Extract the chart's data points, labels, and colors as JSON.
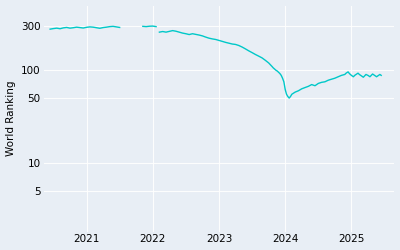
{
  "ylabel": "World Ranking",
  "background_color": "#e8eef5",
  "figure_facecolor": "#e8eef5",
  "line_color": "#00c8c8",
  "line_width": 1.0,
  "yticks": [
    5,
    10,
    50,
    100,
    300
  ],
  "ytick_labels": [
    "5",
    "10",
    "50",
    "100",
    "300"
  ],
  "xtick_years": [
    2021,
    2022,
    2023,
    2024,
    2025
  ],
  "xlim": [
    2020.35,
    2025.65
  ],
  "ylim_log": [
    1.8,
    500
  ],
  "segment1": [
    [
      2020.45,
      278
    ],
    [
      2020.5,
      282
    ],
    [
      2020.55,
      285
    ],
    [
      2020.6,
      281
    ],
    [
      2020.65,
      287
    ],
    [
      2020.7,
      290
    ],
    [
      2020.75,
      285
    ],
    [
      2020.8,
      288
    ],
    [
      2020.85,
      292
    ],
    [
      2020.9,
      289
    ],
    [
      2020.95,
      286
    ],
    [
      2021.0,
      291
    ],
    [
      2021.05,
      294
    ],
    [
      2021.1,
      292
    ],
    [
      2021.15,
      288
    ],
    [
      2021.2,
      284
    ],
    [
      2021.25,
      289
    ],
    [
      2021.3,
      292
    ],
    [
      2021.35,
      296
    ],
    [
      2021.4,
      298
    ],
    [
      2021.45,
      294
    ],
    [
      2021.5,
      290
    ]
  ],
  "segment2": [
    [
      2021.85,
      298
    ],
    [
      2021.9,
      296
    ],
    [
      2021.95,
      299
    ],
    [
      2022.0,
      300
    ],
    [
      2022.05,
      296
    ]
  ],
  "segment3": [
    [
      2022.1,
      258
    ],
    [
      2022.15,
      262
    ],
    [
      2022.2,
      258
    ],
    [
      2022.25,
      263
    ],
    [
      2022.3,
      268
    ],
    [
      2022.35,
      264
    ],
    [
      2022.4,
      258
    ],
    [
      2022.45,
      252
    ],
    [
      2022.5,
      248
    ],
    [
      2022.55,
      243
    ],
    [
      2022.6,
      248
    ],
    [
      2022.65,
      244
    ],
    [
      2022.7,
      240
    ],
    [
      2022.75,
      235
    ],
    [
      2022.8,
      228
    ],
    [
      2022.85,
      222
    ],
    [
      2022.9,
      218
    ],
    [
      2022.95,
      215
    ],
    [
      2023.0,
      210
    ],
    [
      2023.05,
      205
    ],
    [
      2023.1,
      200
    ],
    [
      2023.15,
      196
    ],
    [
      2023.2,
      192
    ],
    [
      2023.25,
      190
    ],
    [
      2023.3,
      185
    ],
    [
      2023.35,
      178
    ],
    [
      2023.4,
      170
    ],
    [
      2023.45,
      162
    ],
    [
      2023.5,
      155
    ],
    [
      2023.55,
      148
    ],
    [
      2023.6,
      142
    ],
    [
      2023.65,
      136
    ],
    [
      2023.7,
      128
    ],
    [
      2023.75,
      120
    ],
    [
      2023.8,
      110
    ],
    [
      2023.82,
      106
    ],
    [
      2023.84,
      103
    ],
    [
      2023.86,
      100
    ],
    [
      2023.88,
      98
    ],
    [
      2023.9,
      95
    ],
    [
      2023.92,
      92
    ],
    [
      2023.94,
      88
    ],
    [
      2023.96,
      82
    ],
    [
      2023.98,
      75
    ],
    [
      2024.0,
      62
    ],
    [
      2024.02,
      55
    ],
    [
      2024.04,
      52
    ],
    [
      2024.06,
      50
    ],
    [
      2024.08,
      52
    ],
    [
      2024.1,
      55
    ],
    [
      2024.15,
      58
    ],
    [
      2024.2,
      60
    ],
    [
      2024.25,
      63
    ],
    [
      2024.3,
      65
    ],
    [
      2024.35,
      67
    ],
    [
      2024.4,
      70
    ],
    [
      2024.45,
      68
    ],
    [
      2024.5,
      72
    ],
    [
      2024.55,
      74
    ],
    [
      2024.6,
      75
    ],
    [
      2024.65,
      78
    ],
    [
      2024.7,
      80
    ],
    [
      2024.75,
      82
    ],
    [
      2024.8,
      85
    ],
    [
      2024.85,
      88
    ],
    [
      2024.9,
      90
    ],
    [
      2024.92,
      93
    ],
    [
      2024.95,
      96
    ],
    [
      2024.97,
      92
    ],
    [
      2025.0,
      88
    ],
    [
      2025.03,
      85
    ],
    [
      2025.05,
      88
    ],
    [
      2025.08,
      91
    ],
    [
      2025.1,
      93
    ],
    [
      2025.12,
      90
    ],
    [
      2025.15,
      87
    ],
    [
      2025.18,
      84
    ],
    [
      2025.2,
      87
    ],
    [
      2025.22,
      90
    ],
    [
      2025.25,
      88
    ],
    [
      2025.28,
      85
    ],
    [
      2025.3,
      88
    ],
    [
      2025.32,
      91
    ],
    [
      2025.35,
      88
    ],
    [
      2025.38,
      85
    ],
    [
      2025.4,
      87
    ],
    [
      2025.43,
      90
    ],
    [
      2025.45,
      88
    ]
  ]
}
